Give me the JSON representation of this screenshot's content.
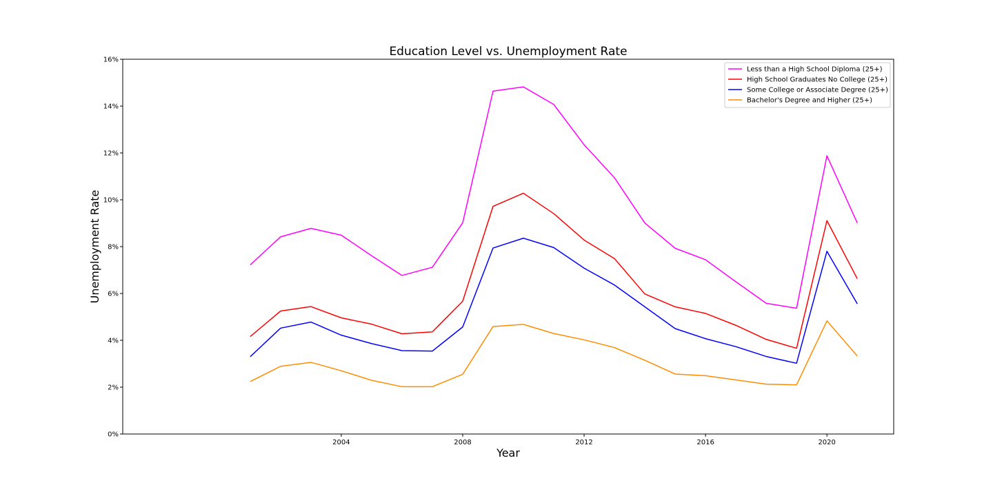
{
  "chart_data": {
    "type": "line",
    "title": "Education Level vs. Unemployment Rate",
    "xlabel": "Year",
    "ylabel": "Unemployment Rate",
    "xlim": [
      1996.8,
      2022.2
    ],
    "ylim": [
      0,
      16
    ],
    "x_ticks": [
      2004,
      2008,
      2012,
      2016,
      2020
    ],
    "y_ticks": [
      0,
      2,
      4,
      6,
      8,
      10,
      12,
      14,
      16
    ],
    "y_tick_suffix": "%",
    "grid": false,
    "legend_position": "upper right",
    "x": [
      2001,
      2002,
      2003,
      2004,
      2005,
      2006,
      2007,
      2008,
      2009,
      2010,
      2011,
      2012,
      2013,
      2014,
      2015,
      2016,
      2017,
      2018,
      2019,
      2020,
      2021
    ],
    "series": [
      {
        "name": "Less than a High School Diploma (25+)",
        "color": "#ff00ff",
        "values": [
          7.22,
          8.42,
          8.78,
          8.49,
          7.61,
          6.77,
          7.12,
          9.02,
          14.64,
          14.82,
          14.07,
          12.35,
          10.94,
          9.01,
          7.93,
          7.44,
          6.5,
          5.58,
          5.37,
          11.88,
          9.01
        ]
      },
      {
        "name": "High School Graduates No College (25+)",
        "color": "#ff0000",
        "values": [
          4.16,
          5.25,
          5.44,
          4.96,
          4.69,
          4.28,
          4.36,
          5.67,
          9.72,
          10.28,
          9.41,
          8.28,
          7.49,
          5.98,
          5.43,
          5.15,
          4.64,
          4.04,
          3.66,
          9.11,
          6.63
        ]
      },
      {
        "name": "Some College or Associate Degree (25+)",
        "color": "#0000ff",
        "values": [
          3.3,
          4.52,
          4.78,
          4.22,
          3.86,
          3.56,
          3.54,
          4.57,
          7.94,
          8.36,
          7.96,
          7.08,
          6.36,
          5.43,
          4.5,
          4.07,
          3.73,
          3.31,
          3.02,
          7.8,
          5.56
        ]
      },
      {
        "name": "Bachelor's Degree and Higher (25+)",
        "color": "#ff8c00",
        "values": [
          2.24,
          2.89,
          3.06,
          2.7,
          2.29,
          2.02,
          2.02,
          2.55,
          4.59,
          4.68,
          4.29,
          4.02,
          3.69,
          3.15,
          2.56,
          2.49,
          2.31,
          2.13,
          2.1,
          4.83,
          3.33
        ]
      }
    ]
  }
}
